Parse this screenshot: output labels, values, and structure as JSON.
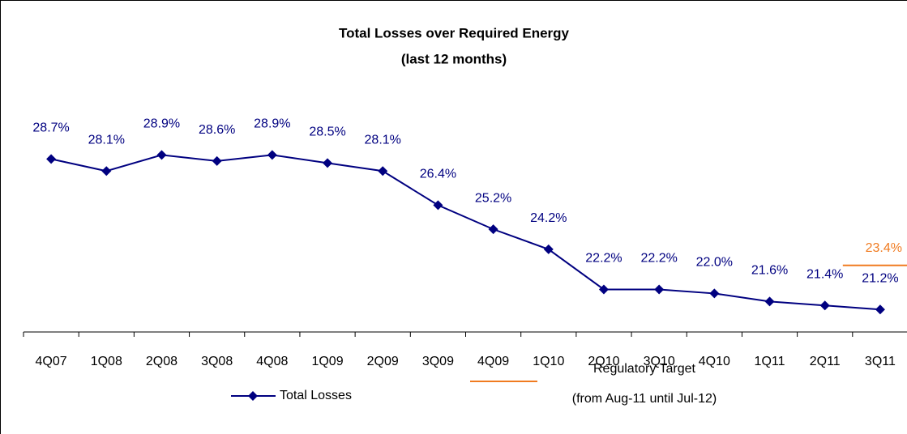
{
  "chart_data": {
    "type": "line",
    "title": "Total Losses over Required Energy",
    "subtitle": "(last 12 months)",
    "categories": [
      "4Q07",
      "1Q08",
      "2Q08",
      "3Q08",
      "4Q08",
      "1Q09",
      "2Q09",
      "3Q09",
      "4Q09",
      "1Q10",
      "2Q10",
      "3Q10",
      "4Q10",
      "1Q11",
      "2Q11",
      "3Q11"
    ],
    "ylim": [
      20,
      31.5
    ],
    "grid": false,
    "series": [
      {
        "name": "Total Losses",
        "color": "#000080",
        "values": [
          28.7,
          28.1,
          28.9,
          28.6,
          28.9,
          28.5,
          28.1,
          26.4,
          25.2,
          24.2,
          22.2,
          22.2,
          22.0,
          21.6,
          21.4,
          21.2
        ],
        "value_labels": [
          "28.7%",
          "28.1%",
          "28.9%",
          "28.6%",
          "28.9%",
          "28.5%",
          "28.1%",
          "26.4%",
          "25.2%",
          "24.2%",
          "22.2%",
          "22.2%",
          "22.0%",
          "21.6%",
          "21.4%",
          "21.2%"
        ]
      },
      {
        "name": "Regulatory Target",
        "period": "(from Aug-11 until Jul-12)",
        "color": "#f07b20",
        "values": [
          null,
          null,
          null,
          null,
          null,
          null,
          null,
          null,
          null,
          null,
          null,
          null,
          null,
          null,
          null,
          23.4
        ],
        "value_labels": [
          null,
          null,
          null,
          null,
          null,
          null,
          null,
          null,
          null,
          null,
          null,
          null,
          null,
          null,
          null,
          "23.4%"
        ]
      }
    ]
  }
}
